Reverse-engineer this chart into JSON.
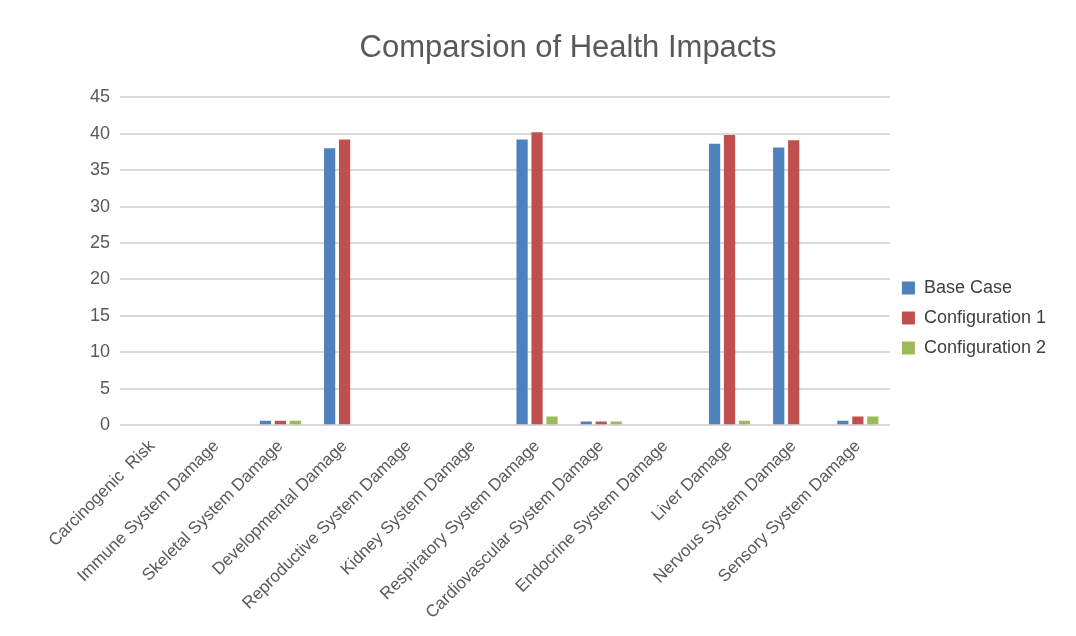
{
  "chart_data": {
    "type": "bar",
    "title": "Comparsion of Health Impacts",
    "categories": [
      "Carcinogenic  Risk",
      "Immune System Damage",
      "Skeletal System Damage",
      "Developmental Damage",
      "Reproductive System Damage",
      "Kidney System Damage",
      "Respiratory System Damage",
      "Cardiovascular System Damage",
      "Endocrine System Damage",
      "Liver Damage",
      "Nervous System Damage",
      "Sensory System Damage"
    ],
    "series": [
      {
        "name": "Base Case",
        "color": "#4f81bd",
        "values": [
          0,
          0,
          0.6,
          38,
          0,
          0,
          39.2,
          0.5,
          0,
          38.6,
          38.1,
          0.6
        ]
      },
      {
        "name": "Configuration 1",
        "color": "#c0504d",
        "values": [
          0,
          0,
          0.6,
          39.2,
          0,
          0,
          40.2,
          0.5,
          0,
          39.8,
          39.1,
          1.2
        ]
      },
      {
        "name": "Configuration 2",
        "color": "#9bbb59",
        "values": [
          0,
          0,
          0.6,
          0,
          0,
          0,
          1.2,
          0.5,
          0,
          0.6,
          0,
          1.2
        ]
      }
    ],
    "ylim": [
      0,
      45
    ],
    "yticks": [
      0,
      5,
      10,
      15,
      20,
      25,
      30,
      35,
      40,
      45
    ],
    "grid": "y",
    "legend": "right"
  }
}
